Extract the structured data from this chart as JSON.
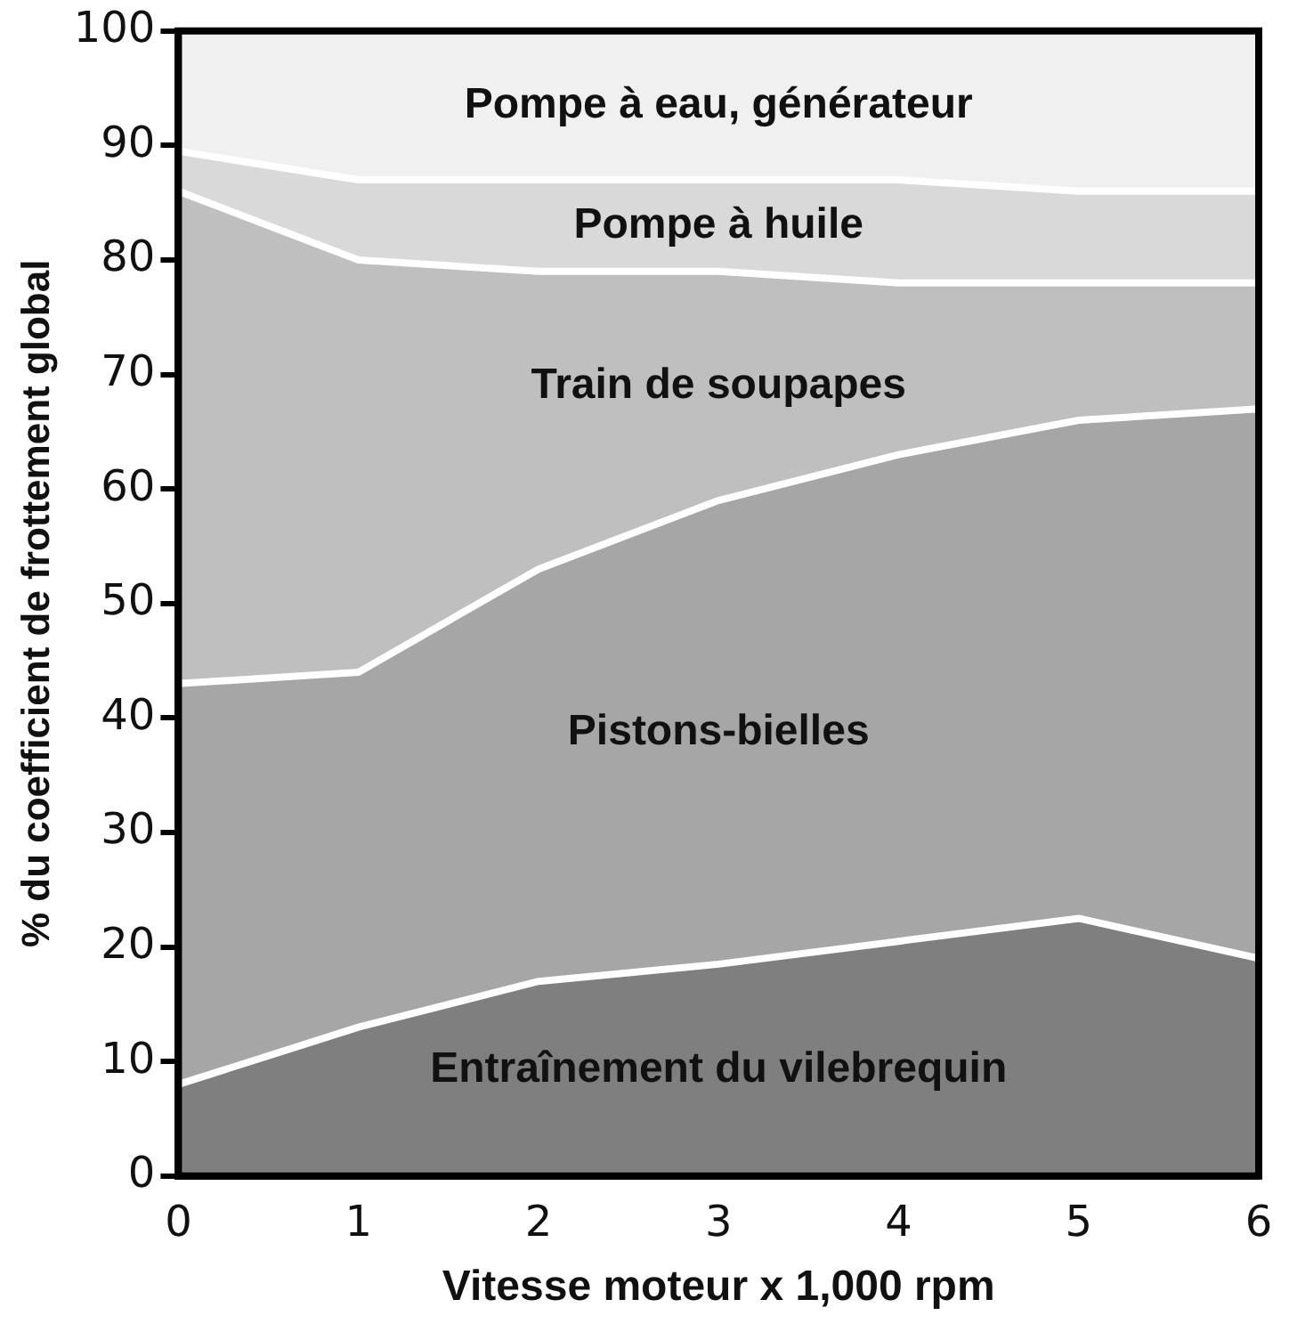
{
  "chart_data": {
    "type": "area",
    "stacked": true,
    "xlabel": "Vitesse moteur x 1,000 rpm",
    "ylabel": "% du coefficient de frottement global",
    "x": [
      0,
      1,
      2,
      3,
      4,
      5,
      6
    ],
    "xlim": [
      0,
      6
    ],
    "xticks": [
      0,
      1,
      2,
      3,
      4,
      5,
      6
    ],
    "ylim": [
      0,
      100
    ],
    "yticks": [
      0,
      10,
      20,
      30,
      40,
      50,
      60,
      70,
      80,
      90,
      100
    ],
    "series": [
      {
        "name": "Entraînement du vilebrequin",
        "color": "#7f7f7f",
        "values": [
          8,
          13,
          17,
          18.5,
          20.5,
          22.5,
          19
        ]
      },
      {
        "name": "Pistons-bielles",
        "color": "#a6a6a6",
        "values": [
          35,
          31,
          36,
          40.5,
          42.5,
          43.5,
          48
        ]
      },
      {
        "name": "Train de soupapes",
        "color": "#bfbfbf",
        "values": [
          43,
          36,
          26,
          20,
          15,
          12,
          11
        ]
      },
      {
        "name": "Pompe à huile",
        "color": "#d9d9d9",
        "values": [
          3.5,
          7,
          8,
          8,
          9,
          8,
          8
        ]
      },
      {
        "name": "Pompe à eau, générateur",
        "color": "#f0f0f0",
        "values": [
          10.5,
          13,
          13,
          13,
          13,
          14,
          14
        ]
      }
    ]
  }
}
